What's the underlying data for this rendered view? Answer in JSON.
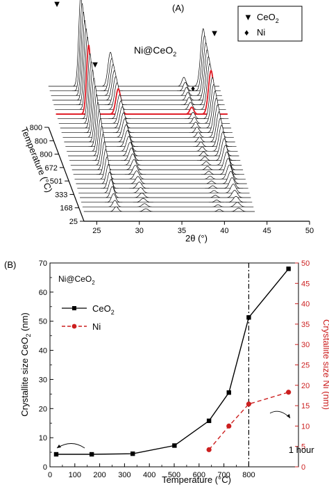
{
  "panel_a": {
    "label": "(A)",
    "sample": "Ni@CeO",
    "sample_sub": "2",
    "ylabel": "Temperature (°C)",
    "xlabel": "2θ (°)",
    "legend": [
      {
        "symbol": "▼",
        "text": "CeO",
        "sub": "2"
      },
      {
        "symbol": "♦",
        "text": "Ni",
        "sub": ""
      }
    ],
    "temp_ticks": [
      "25",
      "168",
      "333",
      "501",
      "672",
      "800",
      "800",
      "800"
    ],
    "x_ticks": [
      "25",
      "30",
      "35",
      "40",
      "45",
      "50"
    ],
    "highlight_color": "#e0202a",
    "line_color": "#000000"
  },
  "chart_data": [
    {
      "type": "line",
      "title": "",
      "xlabel": "2θ (°)",
      "ylabel": "Temperature (°C)",
      "xlim": [
        23.5,
        50
      ],
      "x_ticks": [
        25,
        30,
        35,
        40,
        45,
        50
      ],
      "temperature_ticks": [
        25,
        168,
        333,
        501,
        672,
        800,
        800,
        800
      ],
      "n_patterns": 28,
      "highlight_pattern_index": 21,
      "peaks": [
        {
          "two_theta": 28.5,
          "phase": "CeO2"
        },
        {
          "two_theta": 33.1,
          "phase": "CeO2"
        },
        {
          "two_theta": 44.5,
          "phase": "Ni"
        },
        {
          "two_theta": 47.5,
          "phase": "CeO2"
        }
      ]
    },
    {
      "type": "line",
      "title": "",
      "annotation": "Ni@CeO2",
      "xlabel": "Temperature (°C)",
      "ylabel": "Crystallite size CeO2 (nm)",
      "ylabel_right": "Crystallite size Ni (nm)",
      "xlim": [
        0,
        1000
      ],
      "ylim": [
        0,
        70
      ],
      "ylim_right": [
        0,
        50
      ],
      "x_ticks": [
        "0",
        "100",
        "200",
        "300",
        "400",
        "500",
        "600",
        "700",
        "800",
        "1 hour"
      ],
      "y_ticks": [
        "0",
        "10",
        "20",
        "30",
        "40",
        "50",
        "60",
        "70"
      ],
      "y_ticks_right": [
        "0",
        "5",
        "10",
        "15",
        "20",
        "25",
        "30",
        "35",
        "40",
        "45",
        "50"
      ],
      "vline_x": 800,
      "series": [
        {
          "name": "CeO2",
          "axis": "left",
          "color": "#000000",
          "marker": "square",
          "dash": "solid",
          "x": [
            25,
            168,
            333,
            501,
            640,
            720,
            800,
            960
          ],
          "y": [
            4.3,
            4.3,
            4.5,
            7.3,
            15.8,
            25.5,
            51.3,
            68.0
          ]
        },
        {
          "name": "Ni",
          "axis": "right",
          "color": "#cc1f1f",
          "marker": "circle",
          "dash": "dashed",
          "x": [
            640,
            720,
            800,
            960
          ],
          "y": [
            4.2,
            10.0,
            15.4,
            18.3
          ]
        }
      ]
    }
  ],
  "panel_b": {
    "label": "(B)",
    "sample": "Ni@CeO",
    "sample_sub": "2",
    "xlabel": "Temperature (°C)",
    "ylabel_main": "Crystallite size CeO",
    "ylabel_sub": "2",
    "ylabel_unit": " (nm)",
    "ylabel_right": "Crystallite size Ni (nm)",
    "legend": [
      {
        "text": "CeO",
        "sub": "2"
      },
      {
        "text": "Ni",
        "sub": ""
      }
    ],
    "ni_color": "#cc1f1f",
    "ceo2_color": "#000000"
  }
}
